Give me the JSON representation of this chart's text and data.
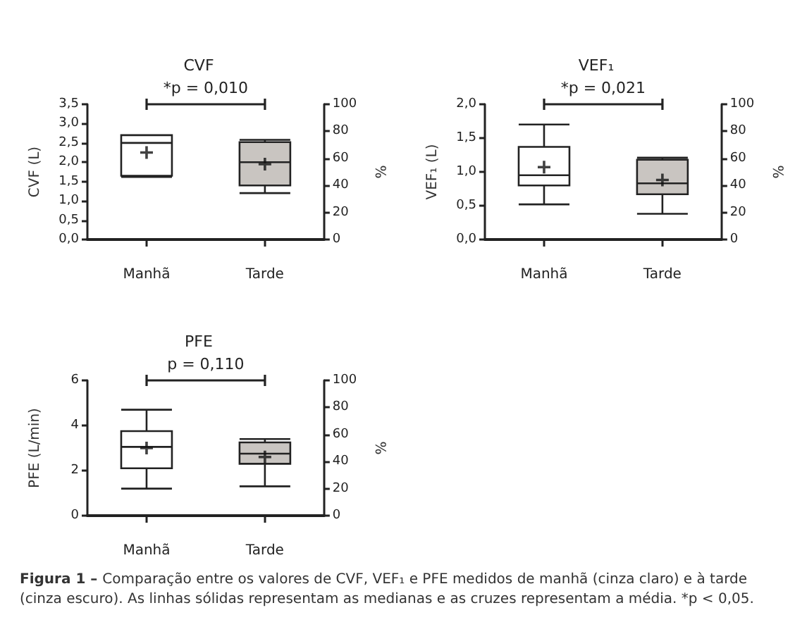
{
  "chart_data": [
    {
      "type": "box",
      "title": "CVF",
      "ylabel": "CVF (L)",
      "y2label": "%",
      "categories": [
        "Manhã",
        "Tarde"
      ],
      "colors": [
        "#ffffff",
        "#c9c5c1"
      ],
      "boxes": [
        {
          "low": 1.62,
          "q1": 1.65,
          "median": 2.5,
          "q3": 2.7,
          "high": 2.7,
          "mean": 2.25
        },
        {
          "low": 1.2,
          "q1": 1.4,
          "median": 2.0,
          "q3": 2.52,
          "high": 2.58,
          "mean": 1.95
        }
      ],
      "ylim": [
        0,
        3.5
      ],
      "yticks": [
        {
          "value": 0,
          "label": "0,0"
        },
        {
          "value": 0.5,
          "label": "0,5"
        },
        {
          "value": 1,
          "label": "1,0"
        },
        {
          "value": 1.5,
          "label": "1,5"
        },
        {
          "value": 2,
          "label": "2,0"
        },
        {
          "value": 2.5,
          "label": "2,5"
        },
        {
          "value": 3,
          "label": "3,0"
        },
        {
          "value": 3.5,
          "label": "3,5"
        }
      ],
      "y2lim": [
        0,
        100
      ],
      "y2ticks": [
        0,
        20,
        40,
        60,
        80,
        100
      ],
      "annotations": [
        "*p = 0,010"
      ],
      "grid": false
    },
    {
      "type": "box",
      "title": "VEF₁",
      "ylabel": "VEF₁ (L)",
      "y2label": "%",
      "categories": [
        "Manhã",
        "Tarde"
      ],
      "colors": [
        "#ffffff",
        "#c9c5c1"
      ],
      "boxes": [
        {
          "low": 0.52,
          "q1": 0.8,
          "median": 0.95,
          "q3": 1.37,
          "high": 1.7,
          "mean": 1.07
        },
        {
          "low": 0.38,
          "q1": 0.67,
          "median": 0.83,
          "q3": 1.18,
          "high": 1.21,
          "mean": 0.88
        }
      ],
      "ylim": [
        0,
        2
      ],
      "yticks": [
        {
          "value": 0,
          "label": "0,0"
        },
        {
          "value": 0.5,
          "label": "0,5"
        },
        {
          "value": 1,
          "label": "1,0"
        },
        {
          "value": 1.5,
          "label": "1,5"
        },
        {
          "value": 2,
          "label": "2,0"
        }
      ],
      "y2lim": [
        0,
        100
      ],
      "y2ticks": [
        0,
        20,
        40,
        60,
        80,
        100
      ],
      "annotations": [
        "*p = 0,021"
      ],
      "grid": false
    },
    {
      "type": "box",
      "title": "PFE",
      "ylabel": "PFE (L/min)",
      "y2label": "%",
      "categories": [
        "Manhã",
        "Tarde"
      ],
      "colors": [
        "#ffffff",
        "#c9c5c1"
      ],
      "boxes": [
        {
          "low": 1.2,
          "q1": 2.1,
          "median": 3.05,
          "q3": 3.75,
          "high": 4.7,
          "mean": 3.0
        },
        {
          "low": 1.3,
          "q1": 2.3,
          "median": 2.75,
          "q3": 3.25,
          "high": 3.4,
          "mean": 2.6
        }
      ],
      "ylim": [
        0,
        6
      ],
      "yticks": [
        0,
        2,
        4,
        6
      ],
      "y2lim": [
        0,
        100
      ],
      "y2ticks": [
        0,
        20,
        40,
        60,
        80,
        100
      ],
      "annotations": [
        "p = 0,110"
      ],
      "grid": false
    },
    {
      "type": "other",
      "annotations": [
        "Figura 1 –",
        "Comparação entre os valores de CVF, VEF₁ e PFE medidos de manhã (cinza claro) e à tarde (cinza escuro). As linhas sólidas representam as medianas e as cruzes representam a média. *p < 0,05."
      ]
    }
  ]
}
